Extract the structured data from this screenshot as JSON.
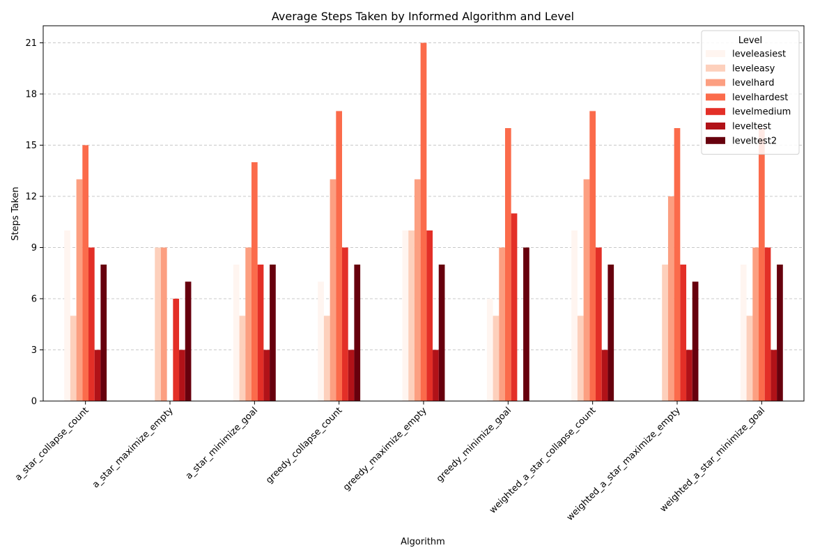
{
  "chart_data": {
    "type": "bar",
    "title": "Average Steps Taken by Informed Algorithm and Level",
    "xlabel": "Algorithm",
    "ylabel": "Steps Taken",
    "ylim": [
      0,
      22
    ],
    "yticks": [
      0,
      3,
      6,
      9,
      12,
      15,
      18,
      21
    ],
    "grid": "y-dashed",
    "legend_title": "Level",
    "legend_position": "top-right",
    "categories": [
      "a_star_collapse_count",
      "a_star_maximize_empty",
      "a_star_minimize_goal",
      "greedy_collapse_count",
      "greedy_maximize_empty",
      "greedy_minimize_goal",
      "weighted_a_star_collapse_count",
      "weighted_a_star_maximize_empty",
      "weighted_a_star_minimize_goal"
    ],
    "series": [
      {
        "name": "leveleasiest",
        "color": "#fff5f0",
        "values": [
          10,
          0,
          8,
          7,
          10,
          6,
          10,
          0,
          8
        ]
      },
      {
        "name": "leveleasy",
        "color": "#fdd0bc",
        "values": [
          5,
          9,
          5,
          5,
          10,
          5,
          5,
          8,
          5
        ]
      },
      {
        "name": "levelhard",
        "color": "#fc9f81",
        "values": [
          13,
          9,
          9,
          13,
          13,
          9,
          13,
          12,
          9
        ]
      },
      {
        "name": "levelhardest",
        "color": "#fb6b4b",
        "values": [
          15,
          0,
          14,
          17,
          21,
          16,
          17,
          16,
          16
        ]
      },
      {
        "name": "levelmedium",
        "color": "#e32f27",
        "values": [
          9,
          6,
          8,
          9,
          10,
          11,
          9,
          8,
          9
        ]
      },
      {
        "name": "leveltest",
        "color": "#b11218",
        "values": [
          3,
          3,
          3,
          3,
          3,
          0,
          3,
          3,
          3
        ]
      },
      {
        "name": "leveltest2",
        "color": "#67000d",
        "values": [
          8,
          7,
          8,
          8,
          8,
          9,
          8,
          7,
          8
        ]
      }
    ]
  }
}
